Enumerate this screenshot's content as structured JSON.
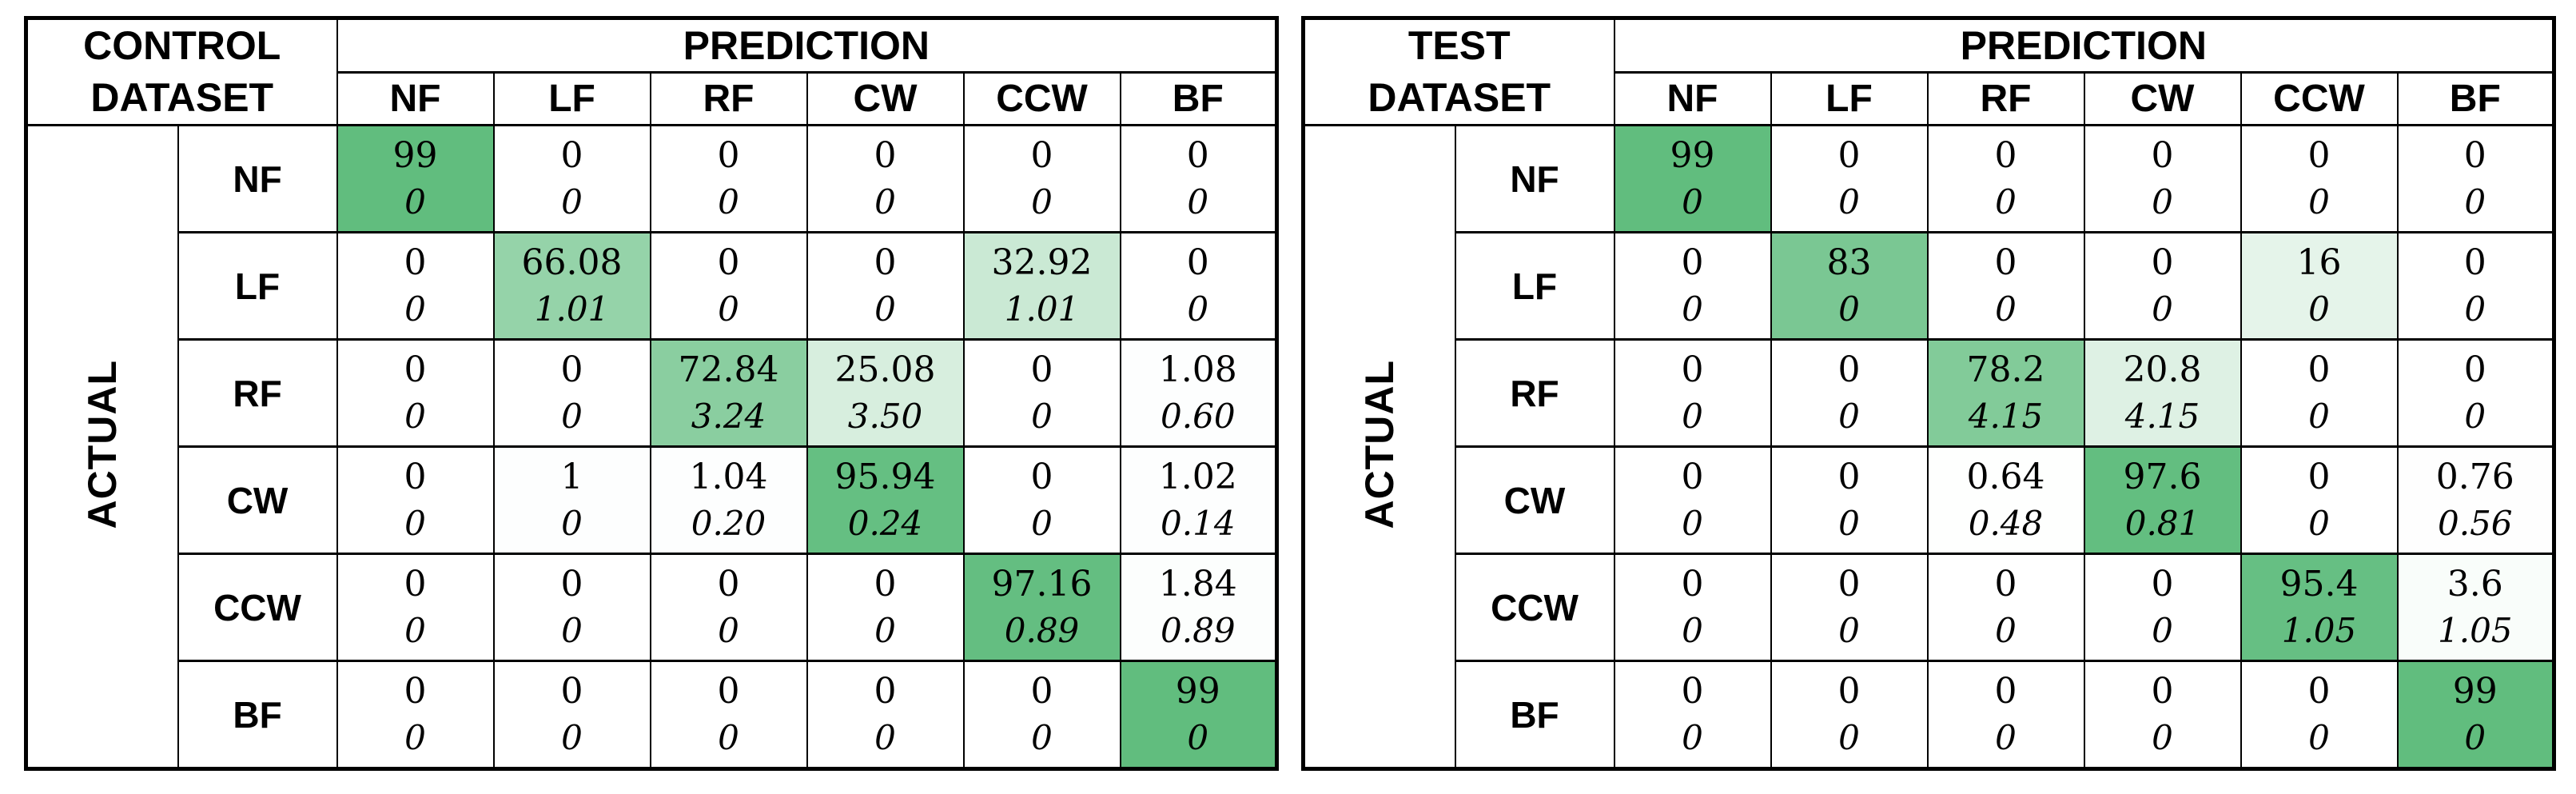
{
  "figure": {
    "background_color": "#ffffff",
    "border_color": "#000000",
    "text_color": "#000000",
    "cell_color_scale": {
      "min_value": 0,
      "max_value": 100,
      "min_color": "#ffffff",
      "max_color": "#5fbc7d"
    }
  },
  "tables": [
    {
      "id": "control",
      "title_lines": [
        "CONTROL",
        "DATASET"
      ],
      "prediction_label": "PREDICTION",
      "actual_label": "ACTUAL",
      "col_headers": [
        "NF",
        "LF",
        "RF",
        "CW",
        "CCW",
        "BF"
      ],
      "row_headers": [
        "NF",
        "LF",
        "RF",
        "CW",
        "CCW",
        "BF"
      ],
      "cells": [
        [
          [
            "99",
            "0"
          ],
          [
            "0",
            "0"
          ],
          [
            "0",
            "0"
          ],
          [
            "0",
            "0"
          ],
          [
            "0",
            "0"
          ],
          [
            "0",
            "0"
          ]
        ],
        [
          [
            "0",
            "0"
          ],
          [
            "66.08",
            "1.01"
          ],
          [
            "0",
            "0"
          ],
          [
            "0",
            "0"
          ],
          [
            "32.92",
            "1.01"
          ],
          [
            "0",
            "0"
          ]
        ],
        [
          [
            "0",
            "0"
          ],
          [
            "0",
            "0"
          ],
          [
            "72.84",
            "3.24"
          ],
          [
            "25.08",
            "3.50"
          ],
          [
            "0",
            "0"
          ],
          [
            "1.08",
            "0.60"
          ]
        ],
        [
          [
            "0",
            "0"
          ],
          [
            "1",
            "0"
          ],
          [
            "1.04",
            "0.20"
          ],
          [
            "95.94",
            "0.24"
          ],
          [
            "0",
            "0"
          ],
          [
            "1.02",
            "0.14"
          ]
        ],
        [
          [
            "0",
            "0"
          ],
          [
            "0",
            "0"
          ],
          [
            "0",
            "0"
          ],
          [
            "0",
            "0"
          ],
          [
            "97.16",
            "0.89"
          ],
          [
            "1.84",
            "0.89"
          ]
        ],
        [
          [
            "0",
            "0"
          ],
          [
            "0",
            "0"
          ],
          [
            "0",
            "0"
          ],
          [
            "0",
            "0"
          ],
          [
            "0",
            "0"
          ],
          [
            "99",
            "0"
          ]
        ]
      ]
    },
    {
      "id": "test",
      "title_lines": [
        "TEST",
        "DATASET"
      ],
      "prediction_label": "PREDICTION",
      "actual_label": "ACTUAL",
      "col_headers": [
        "NF",
        "LF",
        "RF",
        "CW",
        "CCW",
        "BF"
      ],
      "row_headers": [
        "NF",
        "LF",
        "RF",
        "CW",
        "CCW",
        "BF"
      ],
      "cells": [
        [
          [
            "99",
            "0"
          ],
          [
            "0",
            "0"
          ],
          [
            "0",
            "0"
          ],
          [
            "0",
            "0"
          ],
          [
            "0",
            "0"
          ],
          [
            "0",
            "0"
          ]
        ],
        [
          [
            "0",
            "0"
          ],
          [
            "83",
            "0"
          ],
          [
            "0",
            "0"
          ],
          [
            "0",
            "0"
          ],
          [
            "16",
            "0"
          ],
          [
            "0",
            "0"
          ]
        ],
        [
          [
            "0",
            "0"
          ],
          [
            "0",
            "0"
          ],
          [
            "78.2",
            "4.15"
          ],
          [
            "20.8",
            "4.15"
          ],
          [
            "0",
            "0"
          ],
          [
            "0",
            "0"
          ]
        ],
        [
          [
            "0",
            "0"
          ],
          [
            "0",
            "0"
          ],
          [
            "0.64",
            "0.48"
          ],
          [
            "97.6",
            "0.81"
          ],
          [
            "0",
            "0"
          ],
          [
            "0.76",
            "0.56"
          ]
        ],
        [
          [
            "0",
            "0"
          ],
          [
            "0",
            "0"
          ],
          [
            "0",
            "0"
          ],
          [
            "0",
            "0"
          ],
          [
            "95.4",
            "1.05"
          ],
          [
            "3.6",
            "1.05"
          ]
        ],
        [
          [
            "0",
            "0"
          ],
          [
            "0",
            "0"
          ],
          [
            "0",
            "0"
          ],
          [
            "0",
            "0"
          ],
          [
            "0",
            "0"
          ],
          [
            "99",
            "0"
          ]
        ]
      ]
    }
  ],
  "chart_data": [
    {
      "type": "heatmap",
      "title": "CONTROL DATASET",
      "xlabel": "PREDICTION",
      "ylabel": "ACTUAL",
      "x_ticks": [
        "NF",
        "LF",
        "RF",
        "CW",
        "CCW",
        "BF"
      ],
      "y_ticks": [
        "NF",
        "LF",
        "RF",
        "CW",
        "CCW",
        "BF"
      ],
      "values_mean": [
        [
          99,
          0,
          0,
          0,
          0,
          0
        ],
        [
          0,
          66.08,
          0,
          0,
          32.92,
          0
        ],
        [
          0,
          0,
          72.84,
          25.08,
          0,
          1.08
        ],
        [
          0,
          1,
          1.04,
          95.94,
          0,
          1.02
        ],
        [
          0,
          0,
          0,
          0,
          97.16,
          1.84
        ],
        [
          0,
          0,
          0,
          0,
          0,
          99
        ]
      ],
      "values_std": [
        [
          0,
          0,
          0,
          0,
          0,
          0
        ],
        [
          0,
          1.01,
          0,
          0,
          1.01,
          0
        ],
        [
          0,
          0,
          3.24,
          3.5,
          0,
          0.6
        ],
        [
          0,
          0,
          0.2,
          0.24,
          0,
          0.14
        ],
        [
          0,
          0,
          0,
          0,
          0.89,
          0.89
        ],
        [
          0,
          0,
          0,
          0,
          0,
          0
        ]
      ],
      "color_scale": {
        "min": 0,
        "max": 100,
        "min_color": "#ffffff",
        "max_color": "#5fbc7d"
      },
      "legend_position": "none",
      "grid": true
    },
    {
      "type": "heatmap",
      "title": "TEST DATASET",
      "xlabel": "PREDICTION",
      "ylabel": "ACTUAL",
      "x_ticks": [
        "NF",
        "LF",
        "RF",
        "CW",
        "CCW",
        "BF"
      ],
      "y_ticks": [
        "NF",
        "LF",
        "RF",
        "CW",
        "CCW",
        "BF"
      ],
      "values_mean": [
        [
          99,
          0,
          0,
          0,
          0,
          0
        ],
        [
          0,
          83,
          0,
          0,
          16,
          0
        ],
        [
          0,
          0,
          78.2,
          20.8,
          0,
          0
        ],
        [
          0,
          0,
          0.64,
          97.6,
          0,
          0.76
        ],
        [
          0,
          0,
          0,
          0,
          95.4,
          3.6
        ],
        [
          0,
          0,
          0,
          0,
          0,
          99
        ]
      ],
      "values_std": [
        [
          0,
          0,
          0,
          0,
          0,
          0
        ],
        [
          0,
          0,
          0,
          0,
          0,
          0
        ],
        [
          0,
          0,
          4.15,
          4.15,
          0,
          0
        ],
        [
          0,
          0,
          0.48,
          0.81,
          0,
          0.56
        ],
        [
          0,
          0,
          0,
          0,
          1.05,
          1.05
        ],
        [
          0,
          0,
          0,
          0,
          0,
          0
        ]
      ],
      "color_scale": {
        "min": 0,
        "max": 100,
        "min_color": "#ffffff",
        "max_color": "#5fbc7d"
      },
      "legend_position": "none",
      "grid": true
    }
  ]
}
